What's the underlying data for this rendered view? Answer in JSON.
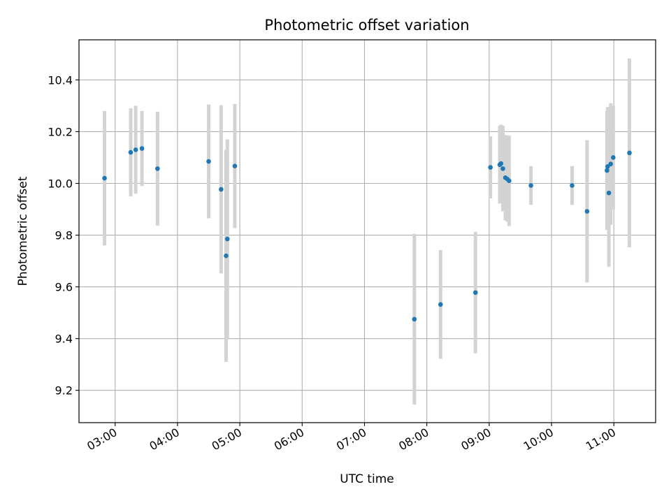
{
  "chart_data": {
    "type": "scatter",
    "title": "Photometric offset variation",
    "xlabel": "UTC time",
    "ylabel": "Photometric offset",
    "x_unit": "hours UTC",
    "xlim": [
      2.42,
      11.67
    ],
    "ylim": [
      9.075,
      10.555
    ],
    "x_ticks": [
      {
        "value": 3,
        "label": "03:00"
      },
      {
        "value": 4,
        "label": "04:00"
      },
      {
        "value": 5,
        "label": "05:00"
      },
      {
        "value": 6,
        "label": "06:00"
      },
      {
        "value": 7,
        "label": "07:00"
      },
      {
        "value": 8,
        "label": "08:00"
      },
      {
        "value": 9,
        "label": "09:00"
      },
      {
        "value": 10,
        "label": "10:00"
      },
      {
        "value": 11,
        "label": "11:00"
      }
    ],
    "y_ticks": [
      {
        "value": 9.2,
        "label": "9.2"
      },
      {
        "value": 9.4,
        "label": "9.4"
      },
      {
        "value": 9.6,
        "label": "9.6"
      },
      {
        "value": 9.8,
        "label": "9.8"
      },
      {
        "value": 10.0,
        "label": "10.0"
      },
      {
        "value": 10.2,
        "label": "10.2"
      },
      {
        "value": 10.4,
        "label": "10.4"
      }
    ],
    "grid": true,
    "point_color": "#1f77b4",
    "errorbar_color": "#d3d3d3",
    "points": [
      {
        "x": 2.83,
        "y": 10.02,
        "err": 0.26
      },
      {
        "x": 3.25,
        "y": 10.12,
        "err": 0.17
      },
      {
        "x": 3.33,
        "y": 10.13,
        "err": 0.17
      },
      {
        "x": 3.43,
        "y": 10.135,
        "err": 0.145
      },
      {
        "x": 3.68,
        "y": 10.057,
        "err": 0.22
      },
      {
        "x": 4.5,
        "y": 10.085,
        "err": 0.22
      },
      {
        "x": 4.7,
        "y": 9.977,
        "err": 0.325
      },
      {
        "x": 4.78,
        "y": 9.72,
        "err": 0.41
      },
      {
        "x": 4.8,
        "y": 9.785,
        "err": 0.385
      },
      {
        "x": 4.92,
        "y": 10.067,
        "err": 0.24
      },
      {
        "x": 7.8,
        "y": 9.475,
        "err": 0.33
      },
      {
        "x": 8.22,
        "y": 9.532,
        "err": 0.21
      },
      {
        "x": 8.78,
        "y": 9.578,
        "err": 0.235
      },
      {
        "x": 9.02,
        "y": 10.062,
        "err": 0.12
      },
      {
        "x": 9.17,
        "y": 10.072,
        "err": 0.15
      },
      {
        "x": 9.19,
        "y": 10.077,
        "err": 0.15
      },
      {
        "x": 9.22,
        "y": 10.057,
        "err": 0.165
      },
      {
        "x": 9.26,
        "y": 10.022,
        "err": 0.165
      },
      {
        "x": 9.29,
        "y": 10.017,
        "err": 0.165
      },
      {
        "x": 9.32,
        "y": 10.01,
        "err": 0.175
      },
      {
        "x": 9.67,
        "y": 9.992,
        "err": 0.075
      },
      {
        "x": 10.33,
        "y": 9.992,
        "err": 0.075
      },
      {
        "x": 10.57,
        "y": 9.892,
        "err": 0.275
      },
      {
        "x": 10.89,
        "y": 10.05,
        "err": 0.23
      },
      {
        "x": 10.9,
        "y": 10.065,
        "err": 0.23
      },
      {
        "x": 10.92,
        "y": 9.963,
        "err": 0.285
      },
      {
        "x": 10.95,
        "y": 10.075,
        "err": 0.235
      },
      {
        "x": 10.99,
        "y": 10.1,
        "err": 0.2
      },
      {
        "x": 11.25,
        "y": 10.118,
        "err": 0.365
      }
    ]
  }
}
